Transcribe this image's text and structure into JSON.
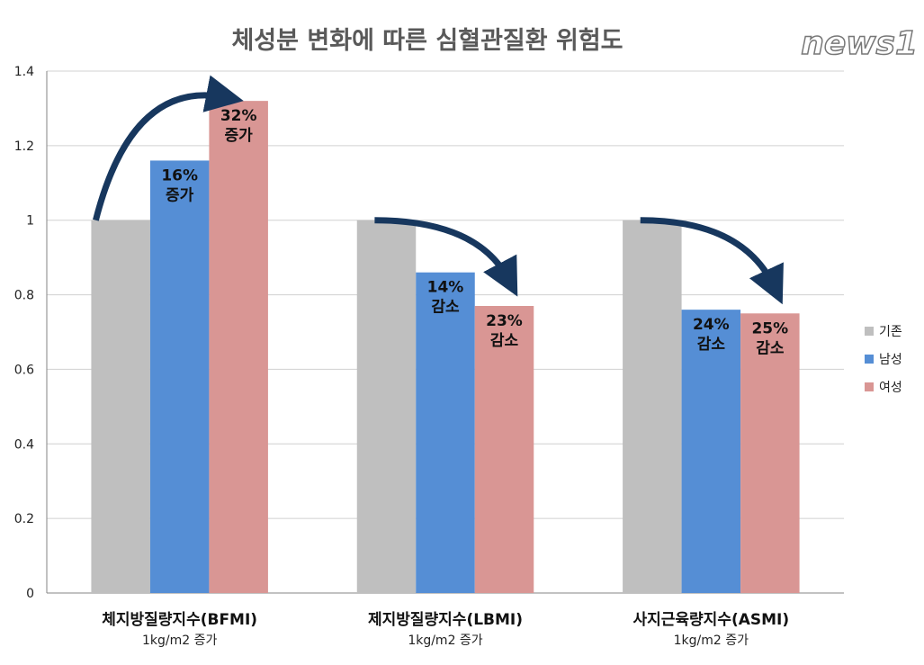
{
  "chart_data": {
    "type": "bar",
    "title": "체성분 변화에 따른 심혈관질환 위험도",
    "categories": [
      {
        "name": "체지방질량지수(BFMI)",
        "sub": "1kg/m2 증가"
      },
      {
        "name": "제지방질량지수(LBMI)",
        "sub": "1kg/m2 증가"
      },
      {
        "name": "사지근육량지수(ASMI)",
        "sub": "1kg/m2 증가"
      }
    ],
    "series": [
      {
        "name": "기존",
        "color": "#bfbfbf",
        "values": [
          1,
          1,
          1
        ]
      },
      {
        "name": "남성",
        "color": "#558ed5",
        "values": [
          1.16,
          0.86,
          0.76
        ]
      },
      {
        "name": "여성",
        "color": "#d99694",
        "values": [
          1.32,
          0.77,
          0.75
        ]
      }
    ],
    "annotations": [
      [
        {
          "pct": "16%",
          "text": "증가"
        },
        {
          "pct": "32%",
          "text": "증가"
        }
      ],
      [
        {
          "pct": "14%",
          "text": "감소"
        },
        {
          "pct": "23%",
          "text": "감소"
        }
      ],
      [
        {
          "pct": "24%",
          "text": "감소"
        },
        {
          "pct": "25%",
          "text": "감소"
        }
      ]
    ],
    "ylim": [
      0,
      1.4
    ],
    "yticks": [
      "0",
      "0.2",
      "0.4",
      "0.6",
      "0.8",
      "1",
      "1.2",
      "1.4"
    ],
    "grid": true,
    "legend": "right",
    "arrow_color": "#17375e",
    "watermark": "news1"
  }
}
